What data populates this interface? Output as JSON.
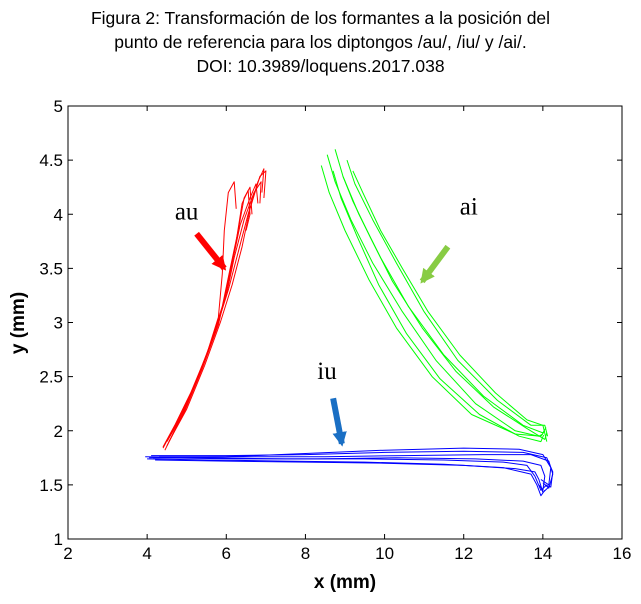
{
  "chart_data": {
    "type": "line",
    "title_lines": [
      "Figura 2: Transformación de los formantes a la posición del",
      "punto de referencia para los diptongos /au/, /iu/ y /ai/.",
      "DOI: 10.3989/loquens.2017.038"
    ],
    "xlabel": "x (mm)",
    "ylabel": "y (mm)",
    "xlim": [
      2,
      16
    ],
    "ylim": [
      1,
      5
    ],
    "xticks": [
      "2",
      "4",
      "6",
      "8",
      "10",
      "12",
      "14",
      "16"
    ],
    "yticks": [
      "1",
      "1.5",
      "2",
      "2.5",
      "3",
      "3.5",
      "4",
      "4.5",
      "5"
    ],
    "grid": false,
    "series": [
      {
        "name": "au",
        "color": "#ff0000",
        "arrow_color": "#ff0000",
        "label_pos": [
          4.7,
          3.95
        ],
        "arrow": [
          [
            5.25,
            3.82
          ],
          [
            5.95,
            3.5
          ]
        ],
        "trajectories": [
          [
            [
              4.4,
              1.85
            ],
            [
              4.7,
              2.05
            ],
            [
              5.1,
              2.35
            ],
            [
              5.5,
              2.7
            ],
            [
              5.8,
              3.05
            ],
            [
              5.9,
              3.45
            ],
            [
              5.95,
              3.85
            ],
            [
              6.05,
              4.2
            ],
            [
              6.2,
              4.3
            ],
            [
              6.25,
              4.05
            ]
          ],
          [
            [
              4.45,
              1.88
            ],
            [
              4.8,
              2.1
            ],
            [
              5.25,
              2.45
            ],
            [
              5.6,
              2.8
            ],
            [
              5.9,
              3.15
            ],
            [
              6.1,
              3.5
            ],
            [
              6.3,
              3.85
            ],
            [
              6.45,
              4.15
            ],
            [
              6.6,
              4.25
            ],
            [
              6.65,
              4.0
            ]
          ],
          [
            [
              4.5,
              1.9
            ],
            [
              4.9,
              2.15
            ],
            [
              5.35,
              2.55
            ],
            [
              5.75,
              2.95
            ],
            [
              6.05,
              3.3
            ],
            [
              6.3,
              3.65
            ],
            [
              6.55,
              4.0
            ],
            [
              6.8,
              4.3
            ],
            [
              6.95,
              4.42
            ],
            [
              6.9,
              4.2
            ]
          ],
          [
            [
              4.45,
              1.82
            ],
            [
              4.85,
              2.12
            ],
            [
              5.3,
              2.5
            ],
            [
              5.7,
              2.9
            ],
            [
              6.0,
              3.25
            ],
            [
              6.2,
              3.6
            ],
            [
              6.45,
              3.95
            ],
            [
              6.7,
              4.2
            ],
            [
              6.88,
              4.3
            ],
            [
              6.85,
              4.1
            ]
          ],
          [
            [
              4.55,
              1.9
            ],
            [
              5.0,
              2.2
            ],
            [
              5.45,
              2.6
            ],
            [
              5.85,
              3.0
            ],
            [
              6.15,
              3.35
            ],
            [
              6.4,
              3.7
            ],
            [
              6.6,
              4.05
            ],
            [
              6.85,
              4.35
            ],
            [
              7.0,
              4.4
            ],
            [
              6.95,
              4.15
            ]
          ],
          [
            [
              4.5,
              1.86
            ],
            [
              4.95,
              2.18
            ],
            [
              5.4,
              2.58
            ],
            [
              5.8,
              2.98
            ],
            [
              6.05,
              3.38
            ],
            [
              6.25,
              3.75
            ],
            [
              6.4,
              4.1
            ],
            [
              6.55,
              4.22
            ],
            [
              6.6,
              4.0
            ],
            [
              6.5,
              3.85
            ]
          ],
          [
            [
              4.4,
              1.84
            ],
            [
              4.75,
              2.08
            ],
            [
              5.2,
              2.42
            ],
            [
              5.65,
              2.85
            ],
            [
              5.95,
              3.2
            ],
            [
              6.15,
              3.55
            ],
            [
              6.35,
              3.9
            ],
            [
              6.6,
              4.15
            ],
            [
              6.75,
              4.28
            ],
            [
              6.8,
              4.1
            ]
          ]
        ]
      },
      {
        "name": "ai",
        "color": "#00ff00",
        "arrow_color": "#88cc44",
        "label_pos": [
          11.9,
          4.0
        ],
        "arrow": [
          [
            11.6,
            3.7
          ],
          [
            10.95,
            3.38
          ]
        ],
        "trajectories": [
          [
            [
              8.4,
              4.45
            ],
            [
              8.6,
              4.2
            ],
            [
              9.0,
              3.85
            ],
            [
              9.6,
              3.4
            ],
            [
              10.3,
              2.95
            ],
            [
              11.2,
              2.5
            ],
            [
              12.2,
              2.15
            ],
            [
              13.3,
              1.97
            ],
            [
              13.95,
              1.95
            ],
            [
              14.05,
              2.0
            ]
          ],
          [
            [
              8.75,
              4.6
            ],
            [
              8.95,
              4.35
            ],
            [
              9.35,
              4.0
            ],
            [
              9.9,
              3.6
            ],
            [
              10.6,
              3.15
            ],
            [
              11.5,
              2.7
            ],
            [
              12.5,
              2.32
            ],
            [
              13.5,
              2.05
            ],
            [
              14.0,
              1.98
            ],
            [
              14.08,
              2.03
            ]
          ],
          [
            [
              8.95,
              4.35
            ],
            [
              9.2,
              4.12
            ],
            [
              9.65,
              3.78
            ],
            [
              10.2,
              3.38
            ],
            [
              10.95,
              2.95
            ],
            [
              11.8,
              2.55
            ],
            [
              12.75,
              2.22
            ],
            [
              13.6,
              2.02
            ],
            [
              14.05,
              1.92
            ],
            [
              14.1,
              1.98
            ]
          ],
          [
            [
              8.7,
              4.4
            ],
            [
              8.9,
              4.15
            ],
            [
              9.3,
              3.8
            ],
            [
              9.85,
              3.35
            ],
            [
              10.55,
              2.9
            ],
            [
              11.4,
              2.48
            ],
            [
              12.4,
              2.15
            ],
            [
              13.4,
              1.95
            ],
            [
              13.95,
              1.9
            ],
            [
              14.02,
              1.96
            ]
          ],
          [
            [
              9.2,
              4.4
            ],
            [
              9.45,
              4.2
            ],
            [
              9.9,
              3.85
            ],
            [
              10.45,
              3.5
            ],
            [
              11.1,
              3.1
            ],
            [
              11.9,
              2.7
            ],
            [
              12.8,
              2.35
            ],
            [
              13.6,
              2.1
            ],
            [
              14.0,
              2.05
            ],
            [
              14.1,
              1.9
            ]
          ],
          [
            [
              8.55,
              4.55
            ],
            [
              8.75,
              4.3
            ],
            [
              9.15,
              3.95
            ],
            [
              9.7,
              3.55
            ],
            [
              10.45,
              3.1
            ],
            [
              11.3,
              2.65
            ],
            [
              12.3,
              2.25
            ],
            [
              13.3,
              2.0
            ],
            [
              13.9,
              1.95
            ],
            [
              14.0,
              1.97
            ]
          ],
          [
            [
              9.05,
              4.5
            ],
            [
              9.25,
              4.28
            ],
            [
              9.7,
              3.95
            ],
            [
              10.3,
              3.55
            ],
            [
              11.0,
              3.1
            ],
            [
              11.85,
              2.65
            ],
            [
              12.85,
              2.28
            ],
            [
              13.7,
              2.05
            ],
            [
              14.05,
              2.05
            ],
            [
              14.12,
              1.95
            ]
          ]
        ]
      },
      {
        "name": "iu",
        "color": "#0000ff",
        "arrow_color": "#1a6fc4",
        "label_pos": [
          8.3,
          2.48
        ],
        "arrow": [
          [
            8.7,
            2.3
          ],
          [
            8.92,
            1.88
          ]
        ],
        "trajectories": [
          [
            [
              3.95,
              1.76
            ],
            [
              5.5,
              1.75
            ],
            [
              7.5,
              1.74
            ],
            [
              9.5,
              1.74
            ],
            [
              11.5,
              1.73
            ],
            [
              13.0,
              1.71
            ],
            [
              13.6,
              1.68
            ],
            [
              13.8,
              1.58
            ],
            [
              13.95,
              1.45
            ],
            [
              14.1,
              1.5
            ]
          ],
          [
            [
              4.0,
              1.74
            ],
            [
              5.5,
              1.73
            ],
            [
              7.5,
              1.72
            ],
            [
              9.5,
              1.71
            ],
            [
              11.5,
              1.69
            ],
            [
              13.0,
              1.66
            ],
            [
              13.7,
              1.6
            ],
            [
              13.85,
              1.5
            ],
            [
              13.95,
              1.4
            ],
            [
              14.05,
              1.45
            ]
          ],
          [
            [
              4.1,
              1.77
            ],
            [
              6.0,
              1.77
            ],
            [
              8.0,
              1.78
            ],
            [
              10.0,
              1.8
            ],
            [
              12.0,
              1.81
            ],
            [
              13.5,
              1.8
            ],
            [
              14.1,
              1.75
            ],
            [
              14.25,
              1.62
            ],
            [
              14.2,
              1.48
            ],
            [
              14.05,
              1.5
            ]
          ],
          [
            [
              4.2,
              1.73
            ],
            [
              6.0,
              1.72
            ],
            [
              8.0,
              1.71
            ],
            [
              10.0,
              1.7
            ],
            [
              12.0,
              1.68
            ],
            [
              13.3,
              1.65
            ],
            [
              13.8,
              1.62
            ],
            [
              13.9,
              1.55
            ],
            [
              14.0,
              1.43
            ],
            [
              14.15,
              1.48
            ]
          ],
          [
            [
              4.3,
              1.76
            ],
            [
              6.5,
              1.76
            ],
            [
              8.5,
              1.76
            ],
            [
              10.5,
              1.77
            ],
            [
              12.5,
              1.78
            ],
            [
              13.7,
              1.78
            ],
            [
              14.15,
              1.72
            ],
            [
              14.25,
              1.6
            ],
            [
              14.15,
              1.47
            ],
            [
              14.0,
              1.52
            ]
          ],
          [
            [
              4.05,
              1.75
            ],
            [
              6.0,
              1.76
            ],
            [
              8.0,
              1.79
            ],
            [
              10.0,
              1.82
            ],
            [
              12.0,
              1.84
            ],
            [
              13.4,
              1.83
            ],
            [
              14.0,
              1.78
            ],
            [
              14.2,
              1.66
            ],
            [
              14.15,
              1.5
            ],
            [
              13.95,
              1.55
            ]
          ],
          [
            [
              4.15,
              1.75
            ],
            [
              6.3,
              1.74
            ],
            [
              8.3,
              1.74
            ],
            [
              10.3,
              1.75
            ],
            [
              12.3,
              1.74
            ],
            [
              13.5,
              1.72
            ],
            [
              13.95,
              1.68
            ],
            [
              14.05,
              1.58
            ],
            [
              14.0,
              1.45
            ],
            [
              13.9,
              1.5
            ]
          ]
        ]
      }
    ]
  }
}
